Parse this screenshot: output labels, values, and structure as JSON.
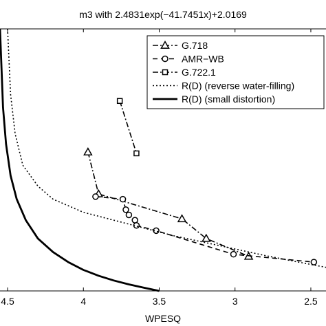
{
  "chart_data": {
    "type": "line",
    "title": "m3 with 2.4831exp(−41.7451x)+2.0169",
    "xlabel": "WPESQ",
    "ylabel": "",
    "xlim": [
      4.55,
      2.4
    ],
    "ylim": [
      0,
      1
    ],
    "x_reversed": true,
    "x_ticks": [
      4.5,
      4,
      3.5,
      3,
      2.5
    ],
    "x_tick_labels": [
      "4.5",
      "4",
      "3.5",
      "3",
      "2.5"
    ],
    "grid": false,
    "legend_position": "top-right",
    "series": [
      {
        "name": "G.718",
        "style": "dashdot",
        "marker": "triangle",
        "color": "#000000",
        "x": [
          3.97,
          3.9,
          3.35,
          3.19,
          2.91
        ],
        "y": [
          0.53,
          0.37,
          0.275,
          0.2,
          0.132
        ]
      },
      {
        "name": "AMR−WB",
        "style": "dashed",
        "marker": "circle",
        "color": "#000000",
        "x": [
          3.92,
          3.74,
          3.72,
          3.7,
          3.66,
          3.65,
          3.52,
          3.01,
          2.48
        ],
        "y": [
          0.36,
          0.35,
          0.31,
          0.29,
          0.27,
          0.25,
          0.23,
          0.14,
          0.11
        ]
      },
      {
        "name": "G.722.1",
        "style": "dashdot",
        "marker": "square",
        "color": "#000000",
        "x": [
          3.76,
          3.65
        ],
        "y": [
          0.725,
          0.525
        ]
      },
      {
        "name": "R(D) (reverse water-filling)",
        "style": "dotted",
        "marker": "none",
        "color": "#000000",
        "x": [
          4.5,
          4.48,
          4.45,
          4.4,
          4.3,
          4.2,
          4.0,
          3.8,
          3.6,
          3.4,
          3.2,
          3.0,
          2.8,
          2.6,
          2.4
        ],
        "y": [
          1.0,
          0.75,
          0.6,
          0.48,
          0.4,
          0.35,
          0.3,
          0.27,
          0.24,
          0.21,
          0.185,
          0.16,
          0.135,
          0.112,
          0.09
        ]
      },
      {
        "name": "R(D) (small distortion)",
        "style": "solid",
        "marker": "none",
        "color": "#000000",
        "x": [
          4.55,
          4.54,
          4.53,
          4.51,
          4.48,
          4.44,
          4.38,
          4.3,
          4.2,
          4.1,
          4.0,
          3.9,
          3.8,
          3.7,
          3.6,
          3.5
        ],
        "y": [
          1.0,
          0.85,
          0.7,
          0.56,
          0.44,
          0.35,
          0.27,
          0.2,
          0.148,
          0.11,
          0.08,
          0.058,
          0.04,
          0.025,
          0.012,
          0.0
        ]
      }
    ]
  }
}
